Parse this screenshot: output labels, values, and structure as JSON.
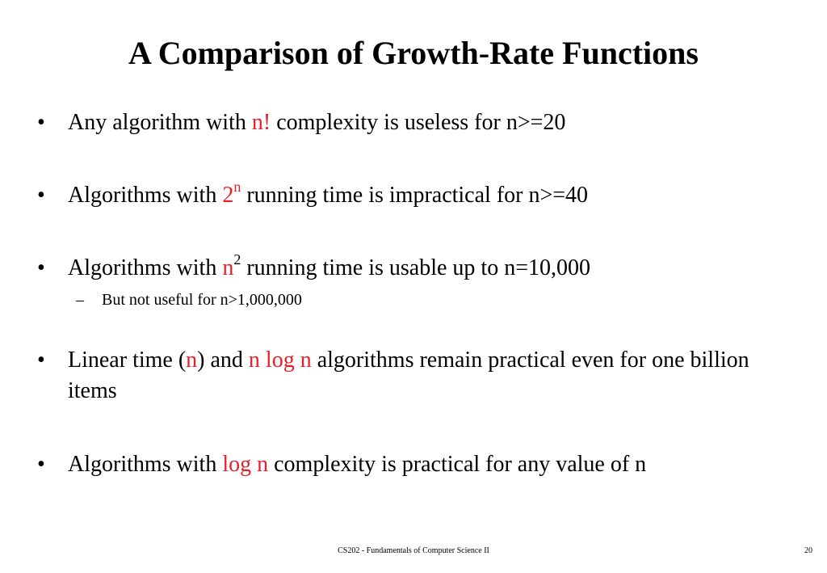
{
  "slide": {
    "title": "A Comparison of Growth-Rate Functions",
    "bullet_char": "•",
    "dash_char": "–",
    "bullets": [
      {
        "pre": "Any algorithm with ",
        "hl": "n!",
        "post": " complexity is useless for n>=20"
      },
      {
        "pre": "Algorithms with ",
        "hl_base": "2",
        "hl_sup": "n",
        "post": " running time is impractical for n>=40"
      },
      {
        "pre": "Algorithms with ",
        "hl_base": "n",
        "hl_sup": "2",
        "post": " running time is usable up to n=10,000",
        "sub": "But not useful for n>1,000,000"
      },
      {
        "pre": "Linear time (",
        "hl1": "n",
        "mid": ") and ",
        "hl2": "n log n",
        "post": " algorithms remain practical even for one billion items"
      },
      {
        "pre": "Algorithms with ",
        "hl": "log n",
        "post": " complexity is practical for any value of n"
      }
    ],
    "footer": "CS202 - Fundamentals of Computer Science II",
    "page_number": "20"
  },
  "colors": {
    "highlight": "#e8202a",
    "text": "#000000",
    "background": "#ffffff"
  }
}
